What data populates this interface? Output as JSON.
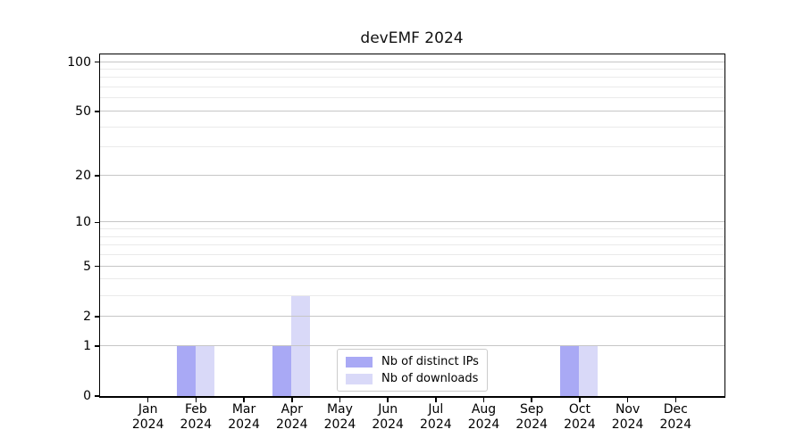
{
  "figure": {
    "background": "#ffffff"
  },
  "chart_data": {
    "type": "bar",
    "title": "devEMF 2024",
    "x_categories": [
      "Jan",
      "Feb",
      "Mar",
      "Apr",
      "May",
      "Jun",
      "Jul",
      "Aug",
      "Sep",
      "Oct",
      "Nov",
      "Dec"
    ],
    "x_year": "2024",
    "series": [
      {
        "name": "Nb of distinct IPs",
        "color": "#a9a9f5",
        "values": [
          0,
          1,
          0,
          1,
          0,
          0,
          0,
          0,
          0,
          1,
          0,
          0
        ]
      },
      {
        "name": "Nb of downloads",
        "color": "#d9d9f8",
        "values": [
          0,
          1,
          0,
          3,
          0,
          0,
          0,
          0,
          0,
          1,
          0,
          0
        ]
      }
    ],
    "yscale": "log1p",
    "ylim": [
      0,
      111
    ],
    "y_ticks": [
      0,
      1,
      2,
      5,
      10,
      20,
      50,
      100
    ],
    "y_minor_gridlines": [
      3,
      4,
      6,
      7,
      8,
      9,
      30,
      40,
      60,
      70,
      80,
      90
    ],
    "grid": "horizontal",
    "legend_position": "inside-bottom-center",
    "colors": {
      "major_grid": "#c6c6c6",
      "minor_grid": "#eaeaea",
      "spine": "#000000",
      "text": "#000000",
      "legend_border": "#cccccc",
      "legend_background": "#ffffff"
    }
  }
}
